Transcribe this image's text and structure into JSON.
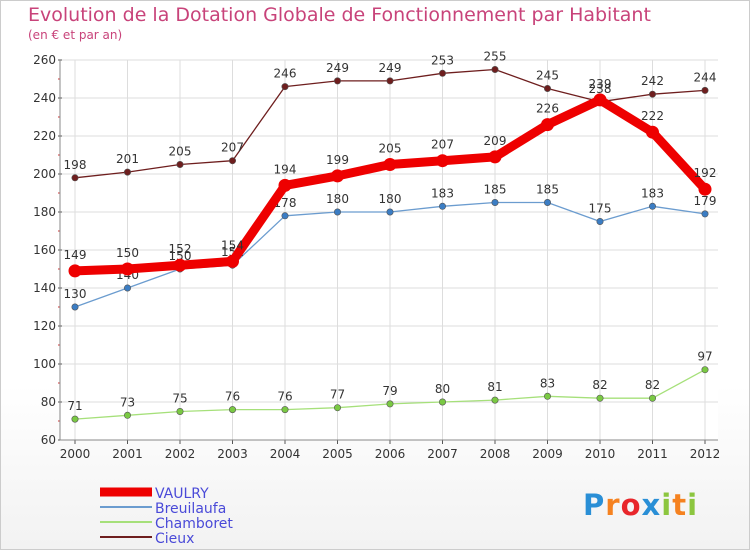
{
  "chart_data": {
    "type": "line",
    "title": "Evolution de la Dotation Globale de Fonctionnement par Habitant",
    "subtitle": "(en € et par an)",
    "xlabel": "",
    "ylabel": "",
    "x": [
      "2000",
      "2001",
      "2002",
      "2003",
      "2004",
      "2005",
      "2006",
      "2007",
      "2008",
      "2009",
      "2010",
      "2011",
      "2012"
    ],
    "ylim": [
      60,
      260
    ],
    "yticks": [
      60,
      80,
      100,
      120,
      140,
      160,
      180,
      200,
      220,
      240,
      260
    ],
    "grid": true,
    "legend_position": "bottom-left",
    "series": [
      {
        "name": "Cieux",
        "color": "#6e1e1e",
        "values": [
          198,
          201,
          205,
          207,
          246,
          249,
          249,
          253,
          255,
          245,
          238,
          242,
          244
        ]
      },
      {
        "name": "Breuilaufa",
        "color": "#6b9ccf",
        "marker": "#3b7dc4",
        "values": [
          130,
          140,
          150,
          152,
          178,
          180,
          180,
          183,
          185,
          185,
          175,
          183,
          179
        ]
      },
      {
        "name": "Chamboret",
        "color": "#a6e07a",
        "marker": "#7ac943",
        "values": [
          71,
          73,
          75,
          76,
          76,
          77,
          79,
          80,
          81,
          83,
          82,
          82,
          97
        ]
      },
      {
        "name": "VAULRY",
        "color": "#ee0000",
        "values": [
          149,
          150,
          152,
          154,
          194,
          199,
          205,
          207,
          209,
          226,
          239,
          222,
          192
        ]
      }
    ],
    "legend": [
      {
        "name": "VAULRY",
        "color": "#ee0000"
      },
      {
        "name": "Breuilaufa",
        "color": "#6b9ccf"
      },
      {
        "name": "Chamboret",
        "color": "#a6e07a"
      },
      {
        "name": "Cieux",
        "color": "#6e1e1e"
      }
    ],
    "legend_text_color": "#4a4ad8"
  },
  "logo": {
    "letters": [
      "P",
      "r",
      "o",
      "x",
      "i",
      "t",
      "i"
    ],
    "colors": [
      "#2a8fd6",
      "#f58220",
      "#e8262b",
      "#2a8fd6",
      "#8cc63f",
      "#f58220",
      "#8cc63f"
    ]
  }
}
